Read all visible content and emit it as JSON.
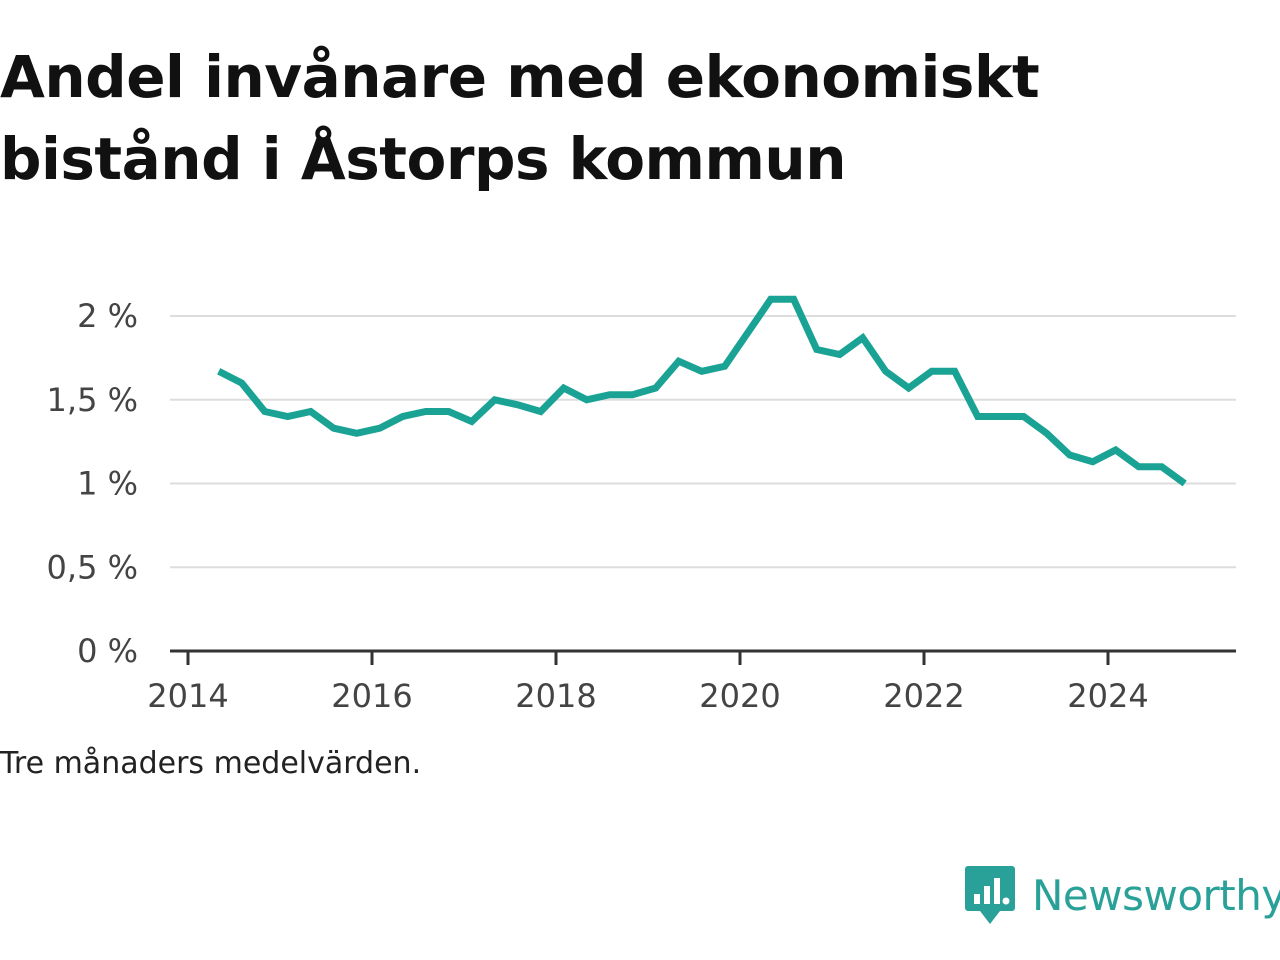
{
  "title": "Andel invånare med ekonomiskt bistånd i Åstorps kommun",
  "note": "Tre månaders medelvärden.",
  "brand": "Newsworthy",
  "colors": {
    "line": "#1aa394",
    "grid": "#dddddd",
    "axis": "#333333",
    "brand": "#2aa198"
  },
  "chart_data": {
    "type": "line",
    "title": "Andel invånare med ekonomiskt bistånd i Åstorps kommun",
    "xlabel": "",
    "ylabel": "",
    "x_ticks": [
      "2014",
      "2016",
      "2018",
      "2020",
      "2022",
      "2024"
    ],
    "y_ticks": [
      "0 %",
      "0,5 %",
      "1 %",
      "1,5 %",
      "2 %"
    ],
    "ylim": [
      0,
      2.2
    ],
    "xlim": [
      "2014-01",
      "2025-06"
    ],
    "grid": "horizontal",
    "legend": "none",
    "series": [
      {
        "x": [
          "2014-05",
          "2014-08",
          "2014-11",
          "2015-02",
          "2015-05",
          "2015-08",
          "2015-11",
          "2016-02",
          "2016-05",
          "2016-08",
          "2016-11",
          "2017-02",
          "2017-05",
          "2017-08",
          "2017-11",
          "2018-02",
          "2018-05",
          "2018-08",
          "2018-11",
          "2019-02",
          "2019-05",
          "2019-08",
          "2019-11",
          "2020-02",
          "2020-05",
          "2020-08",
          "2020-11",
          "2021-02",
          "2021-05",
          "2021-08",
          "2021-11",
          "2022-02",
          "2022-05",
          "2022-08",
          "2022-11",
          "2023-02",
          "2023-05",
          "2023-08",
          "2023-11",
          "2024-02",
          "2024-05",
          "2024-08",
          "2024-11"
        ],
        "values": [
          1.67,
          1.6,
          1.43,
          1.4,
          1.43,
          1.33,
          1.3,
          1.33,
          1.4,
          1.43,
          1.43,
          1.37,
          1.5,
          1.47,
          1.43,
          1.57,
          1.5,
          1.53,
          1.53,
          1.57,
          1.73,
          1.67,
          1.7,
          1.9,
          2.1,
          2.1,
          1.8,
          1.77,
          1.87,
          1.67,
          1.57,
          1.67,
          1.67,
          1.4,
          1.4,
          1.4,
          1.3,
          1.17,
          1.13,
          1.2,
          1.1,
          1.1,
          1.0
        ]
      }
    ]
  }
}
